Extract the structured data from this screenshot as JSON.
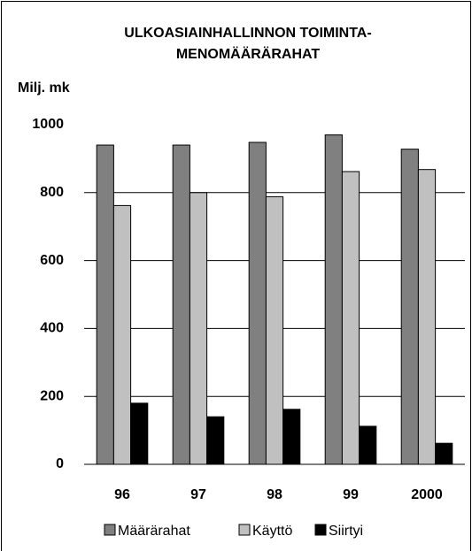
{
  "chart_data": {
    "type": "bar",
    "title": [
      "ULKOASIAINHALLINNON TOIMINTA-",
      "MENOMÄÄRÄRAHAT"
    ],
    "y_label": "Milj. mk",
    "categories": [
      "96",
      "97",
      "98",
      "99",
      "2000"
    ],
    "series": [
      {
        "name": "Määrärahat",
        "color": "#808080",
        "values": [
          940,
          940,
          948,
          970,
          928
        ]
      },
      {
        "name": "Käyttö",
        "color": "#c0c0c0",
        "values": [
          762,
          800,
          788,
          862,
          868
        ]
      },
      {
        "name": "Siirtyi",
        "color": "#000000",
        "values": [
          180,
          140,
          162,
          112,
          62
        ]
      }
    ],
    "ylim": [
      0,
      1000
    ],
    "yticks": [
      0,
      200,
      400,
      600,
      800,
      1000
    ],
    "grid": true,
    "legend": "bottom"
  }
}
